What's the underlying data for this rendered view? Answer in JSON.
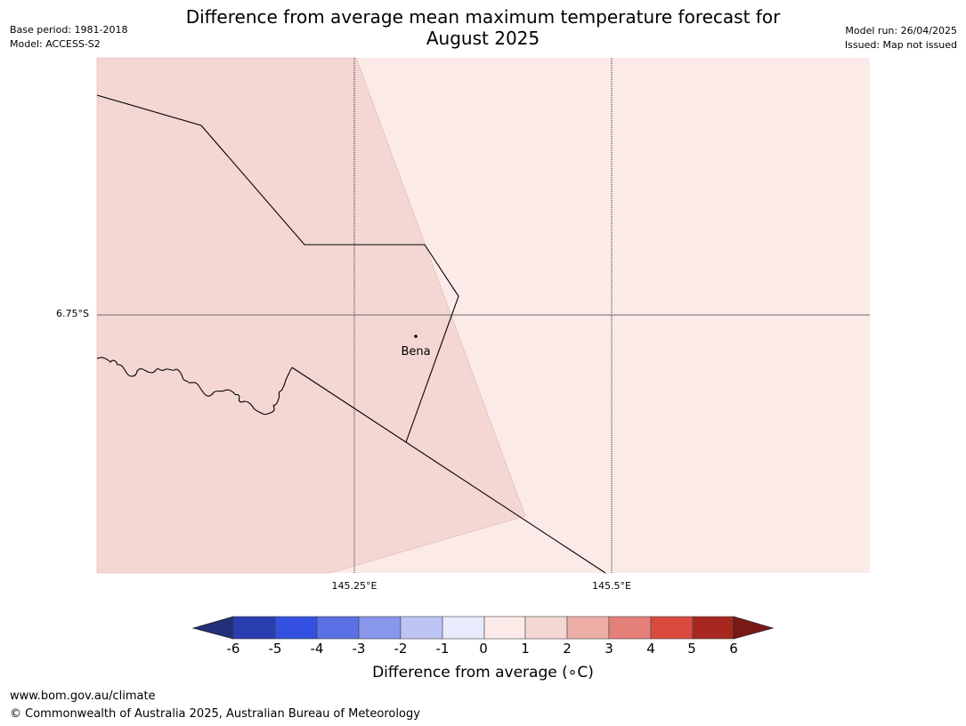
{
  "header": {
    "title_line1": "Difference from average mean maximum temperature forecast for",
    "title_line2": "August 2025",
    "base_period": "Base period: 1981-2018",
    "model": "Model: ACCESS-S2",
    "model_run": "Model run: 26/04/2025",
    "issued": "Issued: Map not issued"
  },
  "map": {
    "latitude_labels": [
      "6.75°S"
    ],
    "longitude_labels": [
      "145.25°E",
      "145.5°E"
    ],
    "places": [
      {
        "name": "Bena"
      }
    ],
    "region_colors": {
      "1_to_2": "#f4d6d2",
      "0_to_1": "#fbeae8"
    }
  },
  "colorbar": {
    "title": "Difference from average (∘C)",
    "ticks": [
      "-6",
      "-5",
      "-4",
      "-3",
      "-2",
      "-1",
      "0",
      "1",
      "2",
      "3",
      "4",
      "5",
      "6"
    ],
    "colors": {
      "below_-6": "#22307a",
      "-6_-5": "#2a3db0",
      "-5_-4": "#3350e0",
      "-4_-3": "#5a6fe4",
      "-3_-2": "#8896ec",
      "-2_-1": "#bec5f4",
      "-1_0": "#e8ebfb",
      "0_1": "#fbeae8",
      "1_2": "#f4d6d2",
      "2_3": "#edaea8",
      "3_4": "#e57f7a",
      "4_5": "#da4a3f",
      "5_6": "#a8271f",
      "above_6": "#7a1a16"
    }
  },
  "footer": {
    "url": "www.bom.gov.au/climate",
    "copyright": "© Commonwealth of Australia 2025, Australian Bureau of Meteorology"
  }
}
